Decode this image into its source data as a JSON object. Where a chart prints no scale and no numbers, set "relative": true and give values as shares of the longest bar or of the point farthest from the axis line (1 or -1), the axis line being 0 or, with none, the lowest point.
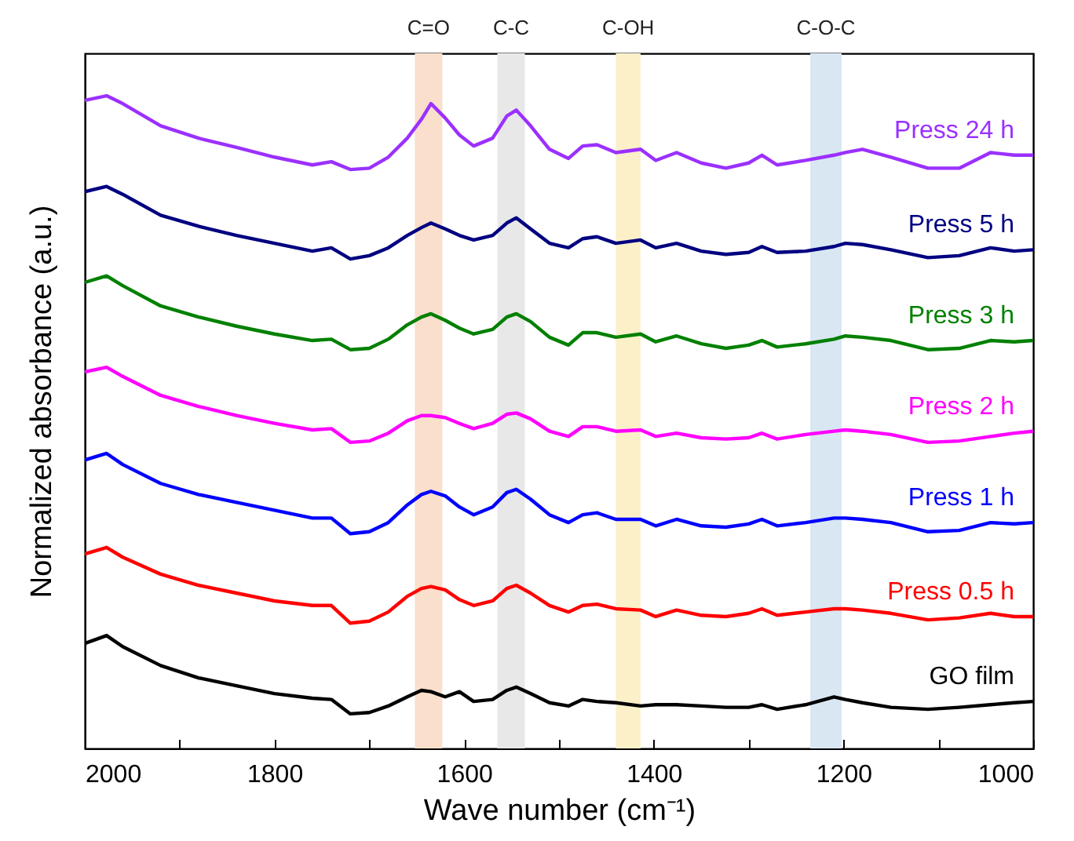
{
  "chart_data": {
    "type": "line",
    "xlabel": "Wave number (cm⁻¹)",
    "ylabel": "Normalized absorbance (a.u.)",
    "relative": true,
    "xlim": [
      2000,
      1000
    ],
    "xticks": [
      2000,
      {
        "value": 1900,
        "label": null
      },
      1800,
      {
        "value": 1700,
        "label": null
      },
      1600,
      {
        "value": 1500,
        "label": null
      },
      1400,
      {
        "value": 1300,
        "label": null
      },
      1200,
      {
        "value": 1100,
        "label": null
      },
      1000
    ],
    "x": [
      2000,
      1977,
      1960,
      1920,
      1880,
      1840,
      1800,
      1760,
      1740,
      1720,
      1700,
      1680,
      1660,
      1645,
      1635,
      1620,
      1605,
      1590,
      1570,
      1555,
      1545,
      1530,
      1510,
      1490,
      1475,
      1460,
      1440,
      1414,
      1398,
      1376,
      1350,
      1324,
      1300,
      1286,
      1270,
      1240,
      1210,
      1198,
      1180,
      1150,
      1111,
      1078,
      1045,
      1020,
      1000
    ],
    "bands": [
      {
        "axis": "x",
        "from": 1652,
        "to": 1623,
        "label": "C=O",
        "color": "#f9dfcc"
      },
      {
        "axis": "x",
        "from": 1565,
        "to": 1536,
        "label": "C-C",
        "color": "#e8e8e8"
      },
      {
        "axis": "x",
        "from": 1440,
        "to": 1414,
        "label": "C-OH",
        "color": "#fcf0c9"
      },
      {
        "axis": "x",
        "from": 1235,
        "to": 1202,
        "label": "C-O-C",
        "color": "#d9e7f3"
      }
    ],
    "series": [
      {
        "name": "Press 24 h",
        "color": "#9b30ff",
        "values": [
          0.993,
          1,
          0.988,
          0.954,
          0.935,
          0.921,
          0.906,
          0.894,
          0.899,
          0.887,
          0.889,
          0.906,
          0.935,
          0.964,
          0.988,
          0.966,
          0.94,
          0.923,
          0.935,
          0.969,
          0.978,
          0.954,
          0.918,
          0.904,
          0.923,
          0.925,
          0.913,
          0.918,
          0.901,
          0.913,
          0.897,
          0.889,
          0.897,
          0.909,
          0.894,
          0.901,
          0.909,
          0.913,
          0.918,
          0.906,
          0.889,
          0.889,
          0.913,
          0.909,
          0.909
        ]
      },
      {
        "name": "Press 5 h",
        "color": "#000080",
        "values": [
          0.853,
          0.861,
          0.849,
          0.817,
          0.8,
          0.786,
          0.774,
          0.762,
          0.767,
          0.75,
          0.755,
          0.767,
          0.786,
          0.798,
          0.805,
          0.796,
          0.786,
          0.779,
          0.786,
          0.805,
          0.813,
          0.796,
          0.774,
          0.767,
          0.781,
          0.784,
          0.774,
          0.779,
          0.767,
          0.774,
          0.762,
          0.757,
          0.76,
          0.769,
          0.76,
          0.762,
          0.769,
          0.774,
          0.772,
          0.764,
          0.752,
          0.755,
          0.767,
          0.762,
          0.764
        ]
      },
      {
        "name": "Press 3 h",
        "color": "#008000",
        "values": [
          0.714,
          0.724,
          0.709,
          0.678,
          0.661,
          0.647,
          0.635,
          0.625,
          0.627,
          0.611,
          0.613,
          0.627,
          0.649,
          0.661,
          0.666,
          0.656,
          0.644,
          0.635,
          0.642,
          0.661,
          0.666,
          0.654,
          0.63,
          0.618,
          0.637,
          0.637,
          0.63,
          0.635,
          0.623,
          0.632,
          0.62,
          0.613,
          0.618,
          0.625,
          0.615,
          0.62,
          0.627,
          0.632,
          0.63,
          0.625,
          0.611,
          0.613,
          0.625,
          0.623,
          0.625
        ]
      },
      {
        "name": "Press 2 h",
        "color": "#ff00ff",
        "values": [
          0.577,
          0.584,
          0.57,
          0.541,
          0.524,
          0.51,
          0.498,
          0.488,
          0.49,
          0.469,
          0.471,
          0.483,
          0.502,
          0.51,
          0.51,
          0.507,
          0.498,
          0.49,
          0.498,
          0.512,
          0.514,
          0.505,
          0.486,
          0.478,
          0.493,
          0.493,
          0.486,
          0.488,
          0.478,
          0.483,
          0.476,
          0.474,
          0.476,
          0.483,
          0.474,
          0.481,
          0.486,
          0.488,
          0.486,
          0.481,
          0.469,
          0.471,
          0.478,
          0.483,
          0.486
        ]
      },
      {
        "name": "Press 1 h",
        "color": "#0000ff",
        "values": [
          0.442,
          0.452,
          0.435,
          0.406,
          0.389,
          0.377,
          0.365,
          0.353,
          0.353,
          0.329,
          0.332,
          0.346,
          0.373,
          0.389,
          0.394,
          0.387,
          0.37,
          0.358,
          0.37,
          0.392,
          0.397,
          0.382,
          0.358,
          0.346,
          0.358,
          0.361,
          0.351,
          0.351,
          0.341,
          0.351,
          0.341,
          0.339,
          0.344,
          0.351,
          0.341,
          0.346,
          0.353,
          0.353,
          0.351,
          0.346,
          0.332,
          0.334,
          0.346,
          0.344,
          0.346
        ]
      },
      {
        "name": "Press 0.5 h",
        "color": "#ff0000",
        "values": [
          0.298,
          0.308,
          0.293,
          0.267,
          0.25,
          0.238,
          0.226,
          0.219,
          0.219,
          0.192,
          0.195,
          0.209,
          0.233,
          0.245,
          0.248,
          0.243,
          0.228,
          0.219,
          0.226,
          0.245,
          0.25,
          0.238,
          0.219,
          0.209,
          0.219,
          0.221,
          0.214,
          0.212,
          0.202,
          0.212,
          0.204,
          0.202,
          0.207,
          0.214,
          0.204,
          0.209,
          0.214,
          0.214,
          0.212,
          0.207,
          0.197,
          0.2,
          0.207,
          0.202,
          0.202
        ]
      },
      {
        "name": "GO film",
        "color": "#000000",
        "values": [
          0.161,
          0.173,
          0.156,
          0.127,
          0.108,
          0.096,
          0.084,
          0.077,
          0.075,
          0.053,
          0.055,
          0.065,
          0.079,
          0.089,
          0.087,
          0.079,
          0.087,
          0.072,
          0.075,
          0.089,
          0.094,
          0.084,
          0.07,
          0.065,
          0.075,
          0.072,
          0.07,
          0.065,
          0.067,
          0.067,
          0.065,
          0.063,
          0.063,
          0.067,
          0.06,
          0.067,
          0.079,
          0.075,
          0.07,
          0.063,
          0.06,
          0.063,
          0.067,
          0.07,
          0.072
        ]
      }
    ]
  }
}
